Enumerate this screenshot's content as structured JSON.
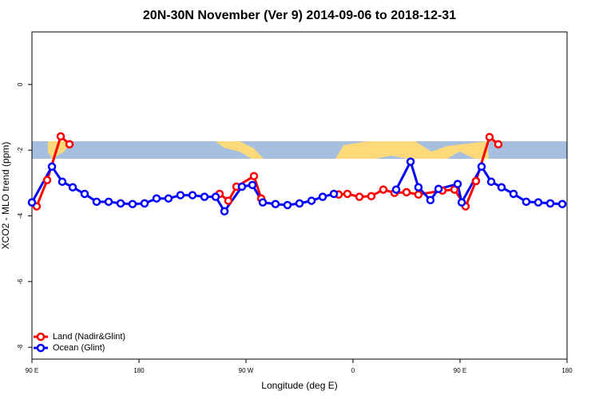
{
  "chart_data": {
    "type": "line",
    "title": "20N-30N November (Ver 9)   2014-09-06 to 2018-12-31",
    "x_label": "Longitude (deg E)",
    "y_label": "XCO2 - MLO trend (ppm)",
    "xlim": [
      90,
      540
    ],
    "ylim": [
      -8.36,
      1.6
    ],
    "xticks": [
      {
        "value": 90,
        "label": "90 E"
      },
      {
        "value": 180,
        "label": "180"
      },
      {
        "value": 270,
        "label": "90 W"
      },
      {
        "value": 360,
        "label": "0"
      },
      {
        "value": 450,
        "label": "90 E"
      },
      {
        "value": 540,
        "label": "180"
      }
    ],
    "yticks": [
      0,
      -2,
      -4,
      -6,
      -8
    ],
    "legend": "bottom-left",
    "series": [
      {
        "name": "Land (Nadir&Glint)",
        "color": "#ff0000",
        "x": [
          94,
          102.8,
          114.2,
          121.6,
          null,
          247.8,
          255.2,
          262,
          276.7,
          282.8,
          null,
          347.9,
          355.3,
          365.4,
          375.4,
          385.5,
          394.9,
          405,
          415,
          435.2,
          445.3,
          454.7,
          463.4,
          474.8,
          482.2
        ],
        "values": [
          -3.71,
          -2.91,
          -1.58,
          -1.82,
          null,
          -3.33,
          -3.54,
          -3.11,
          -2.79,
          -3.47,
          null,
          -3.35,
          -3.33,
          -3.42,
          -3.4,
          -3.2,
          -3.3,
          -3.28,
          -3.35,
          -3.23,
          -3.2,
          -3.71,
          -2.94,
          -1.6,
          -1.82
        ]
      },
      {
        "name": "Ocean (Glint)",
        "color": "#0000ff",
        "x": [
          90,
          106.8,
          115.5,
          124.3,
          134.3,
          144.4,
          154.5,
          164.6,
          174.6,
          184.7,
          194.8,
          204.8,
          214.9,
          225,
          235.1,
          244.5,
          251.9,
          266.6,
          275.4,
          284.1,
          294.8,
          304.9,
          315,
          325.1,
          334.5,
          343.9,
          null,
          396.3,
          408.4,
          415,
          425.1,
          431.9,
          448,
          451.4,
          468.1,
          476.2,
          484.9,
          495,
          505.7,
          515.8,
          525.9,
          536
        ],
        "values": [
          -3.59,
          -2.5,
          -2.96,
          -3.13,
          -3.33,
          -3.57,
          -3.57,
          -3.62,
          -3.64,
          -3.62,
          -3.47,
          -3.47,
          -3.37,
          -3.37,
          -3.42,
          -3.42,
          -3.86,
          -3.11,
          -3.06,
          -3.59,
          -3.64,
          -3.67,
          -3.62,
          -3.54,
          -3.42,
          -3.33,
          null,
          -3.2,
          -2.35,
          -3.13,
          -3.52,
          -3.18,
          -3.03,
          -3.59,
          -2.5,
          -2.96,
          -3.13,
          -3.33,
          -3.57,
          -3.59,
          -3.62,
          -3.64
        ]
      }
    ]
  }
}
